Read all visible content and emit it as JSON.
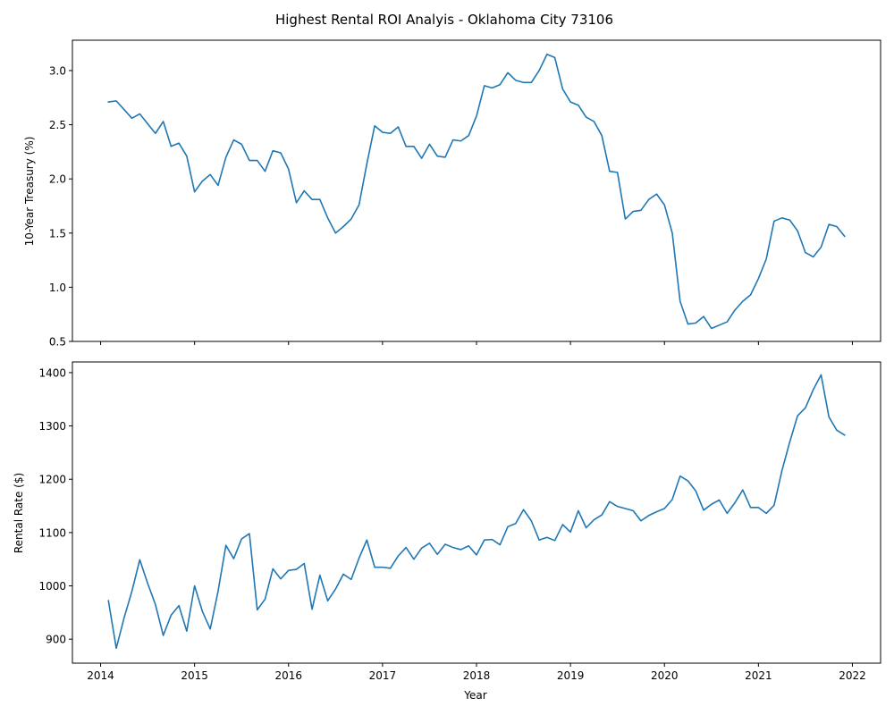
{
  "figure": {
    "title": "Highest Rental ROI Analyis - Oklahoma City 73106",
    "line_color": "#1f77b4"
  },
  "chart_data": [
    {
      "type": "line",
      "ylabel": "10-Year Treasury (%)",
      "xlabel": "",
      "xlim": [
        2013.7,
        2022.3
      ],
      "ylim": [
        0.5,
        3.28
      ],
      "xticks": [
        2014,
        2015,
        2016,
        2017,
        2018,
        2019,
        2020,
        2021,
        2022
      ],
      "xtick_labels_shown": false,
      "yticks": [
        0.5,
        1.0,
        1.5,
        2.0,
        2.5,
        3.0
      ],
      "ytick_labels": [
        "0.5",
        "1.0",
        "1.5",
        "2.0",
        "2.5",
        "3.0"
      ],
      "grid": false,
      "series": [
        {
          "x": [
            "2014-02",
            "2014-03",
            "2014-04",
            "2014-05",
            "2014-06",
            "2014-07",
            "2014-08",
            "2014-09",
            "2014-10",
            "2014-11",
            "2014-12",
            "2015-01",
            "2015-02",
            "2015-03",
            "2015-04",
            "2015-05",
            "2015-06",
            "2015-07",
            "2015-08",
            "2015-09",
            "2015-10",
            "2015-11",
            "2015-12",
            "2016-01",
            "2016-02",
            "2016-03",
            "2016-04",
            "2016-05",
            "2016-06",
            "2016-07",
            "2016-08",
            "2016-09",
            "2016-10",
            "2016-11",
            "2016-12",
            "2017-01",
            "2017-02",
            "2017-03",
            "2017-04",
            "2017-05",
            "2017-06",
            "2017-07",
            "2017-08",
            "2017-09",
            "2017-10",
            "2017-11",
            "2017-12",
            "2018-01",
            "2018-02",
            "2018-03",
            "2018-04",
            "2018-05",
            "2018-06",
            "2018-07",
            "2018-08",
            "2018-09",
            "2018-10",
            "2018-11",
            "2018-12",
            "2019-01",
            "2019-02",
            "2019-03",
            "2019-04",
            "2019-05",
            "2019-06",
            "2019-07",
            "2019-08",
            "2019-09",
            "2019-10",
            "2019-11",
            "2019-12",
            "2020-01",
            "2020-02",
            "2020-03",
            "2020-04",
            "2020-05",
            "2020-06",
            "2020-07",
            "2020-08",
            "2020-09",
            "2020-10",
            "2020-11",
            "2020-12",
            "2021-01",
            "2021-02",
            "2021-03",
            "2021-04",
            "2021-05",
            "2021-06",
            "2021-07",
            "2021-08",
            "2021-09",
            "2021-10",
            "2021-11",
            "2021-12"
          ],
          "values": [
            2.71,
            2.72,
            2.64,
            2.56,
            2.6,
            2.51,
            2.42,
            2.53,
            2.3,
            2.33,
            2.21,
            1.88,
            1.98,
            2.04,
            1.94,
            2.2,
            2.36,
            2.32,
            2.17,
            2.17,
            2.07,
            2.26,
            2.24,
            2.09,
            1.78,
            1.89,
            1.81,
            1.81,
            1.64,
            1.5,
            1.56,
            1.63,
            1.76,
            2.14,
            2.49,
            2.43,
            2.42,
            2.48,
            2.3,
            2.3,
            2.19,
            2.32,
            2.21,
            2.2,
            2.36,
            2.35,
            2.4,
            2.58,
            2.86,
            2.84,
            2.87,
            2.98,
            2.91,
            2.89,
            2.89,
            3.0,
            3.15,
            3.12,
            2.83,
            2.71,
            2.68,
            2.57,
            2.53,
            2.4,
            2.07,
            2.06,
            1.63,
            1.7,
            1.71,
            1.81,
            1.86,
            1.76,
            1.5,
            0.87,
            0.66,
            0.67,
            0.73,
            0.62,
            0.65,
            0.68,
            0.79,
            0.87,
            0.93,
            1.08,
            1.26,
            1.61,
            1.64,
            1.62,
            1.52,
            1.32,
            1.28,
            1.37,
            1.58,
            1.56,
            1.47
          ]
        }
      ]
    },
    {
      "type": "line",
      "ylabel": "Rental Rate ($)",
      "xlabel": "Year",
      "xlim": [
        2013.7,
        2022.3
      ],
      "ylim": [
        855,
        1420
      ],
      "xticks": [
        2014,
        2015,
        2016,
        2017,
        2018,
        2019,
        2020,
        2021,
        2022
      ],
      "xtick_labels": [
        "2014",
        "2015",
        "2016",
        "2017",
        "2018",
        "2019",
        "2020",
        "2021",
        "2022"
      ],
      "yticks": [
        900,
        1000,
        1100,
        1200,
        1300,
        1400
      ],
      "ytick_labels": [
        "900",
        "1000",
        "1100",
        "1200",
        "1300",
        "1400"
      ],
      "grid": false,
      "series": [
        {
          "x": [
            "2014-02",
            "2014-03",
            "2014-04",
            "2014-05",
            "2014-06",
            "2014-07",
            "2014-08",
            "2014-09",
            "2014-10",
            "2014-11",
            "2014-12",
            "2015-01",
            "2015-02",
            "2015-03",
            "2015-04",
            "2015-05",
            "2015-06",
            "2015-07",
            "2015-08",
            "2015-09",
            "2015-10",
            "2015-11",
            "2015-12",
            "2016-01",
            "2016-02",
            "2016-03",
            "2016-04",
            "2016-05",
            "2016-06",
            "2016-07",
            "2016-08",
            "2016-09",
            "2016-10",
            "2016-11",
            "2016-12",
            "2017-01",
            "2017-02",
            "2017-03",
            "2017-04",
            "2017-05",
            "2017-06",
            "2017-07",
            "2017-08",
            "2017-09",
            "2017-10",
            "2017-11",
            "2017-12",
            "2018-01",
            "2018-02",
            "2018-03",
            "2018-04",
            "2018-05",
            "2018-06",
            "2018-07",
            "2018-08",
            "2018-09",
            "2018-10",
            "2018-11",
            "2018-12",
            "2019-01",
            "2019-02",
            "2019-03",
            "2019-04",
            "2019-05",
            "2019-06",
            "2019-07",
            "2019-08",
            "2019-09",
            "2019-10",
            "2019-11",
            "2019-12",
            "2020-01",
            "2020-02",
            "2020-03",
            "2020-04",
            "2020-05",
            "2020-06",
            "2020-07",
            "2020-08",
            "2020-09",
            "2020-10",
            "2020-11",
            "2020-12",
            "2021-01",
            "2021-02",
            "2021-03",
            "2021-04",
            "2021-05",
            "2021-06",
            "2021-07",
            "2021-08",
            "2021-09",
            "2021-10",
            "2021-11",
            "2021-12"
          ],
          "values": [
            972,
            883,
            940,
            990,
            1049,
            1005,
            965,
            907,
            945,
            963,
            915,
            1000,
            952,
            919,
            990,
            1076,
            1051,
            1088,
            1098,
            955,
            975,
            1032,
            1013,
            1029,
            1031,
            1042,
            956,
            1020,
            972,
            994,
            1022,
            1012,
            1052,
            1086,
            1035,
            1035,
            1033,
            1056,
            1072,
            1050,
            1071,
            1080,
            1059,
            1078,
            1072,
            1068,
            1075,
            1058,
            1086,
            1087,
            1077,
            1111,
            1117,
            1143,
            1122,
            1086,
            1091,
            1085,
            1115,
            1101,
            1141,
            1109,
            1124,
            1133,
            1158,
            1149,
            1145,
            1141,
            1122,
            1132,
            1139,
            1145,
            1162,
            1206,
            1197,
            1178,
            1142,
            1153,
            1161,
            1136,
            1156,
            1180,
            1147,
            1147,
            1136,
            1151,
            1216,
            1270,
            1319,
            1334,
            1368,
            1396,
            1317,
            1292,
            1283
          ]
        }
      ]
    }
  ]
}
